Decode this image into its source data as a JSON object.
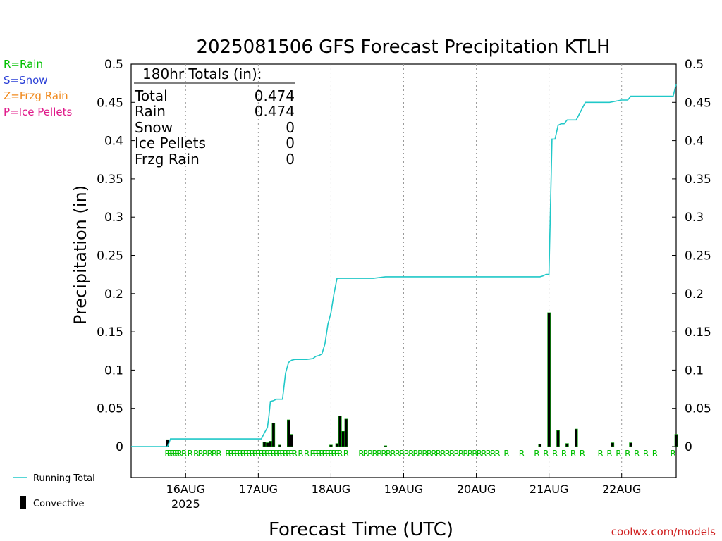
{
  "chart_data": {
    "type": "bar",
    "title": "2025081506 GFS Forecast Precipitation KTLH",
    "xlabel": "Forecast Time (UTC)",
    "ylabel": "Precipitation (in)",
    "ylim": [
      -0.04,
      0.5
    ],
    "yticks": [
      0,
      0.05,
      0.1,
      0.15,
      0.2,
      0.25,
      0.3,
      0.35,
      0.4,
      0.45,
      0.5
    ],
    "ytick_labels": [
      "0",
      "0.05",
      "0.1",
      "0.15",
      "0.2",
      "0.25",
      "0.3",
      "0.35",
      "0.4",
      "0.45",
      "0.5"
    ],
    "x_unit": "hours since 2025-08-15 06Z",
    "xlim": [
      0,
      180
    ],
    "grid": "vertical dotted at day boundaries",
    "xticks": [
      {
        "label": "16AUG",
        "sublabel": "2025",
        "hour": 18
      },
      {
        "label": "17AUG",
        "hour": 42
      },
      {
        "label": "18AUG",
        "hour": 66
      },
      {
        "label": "19AUG",
        "hour": 90
      },
      {
        "label": "20AUG",
        "hour": 114
      },
      {
        "label": "21AUG",
        "hour": 138
      },
      {
        "label": "22AUG",
        "hour": 162
      }
    ],
    "totals": {
      "heading": "180hr Totals (in):",
      "rows": [
        {
          "label": "Total",
          "value": "0.474"
        },
        {
          "label": "Rain",
          "value": "0.474"
        },
        {
          "label": "Snow",
          "value": "0"
        },
        {
          "label": "Ice Pellets",
          "value": "0"
        },
        {
          "label": "Frzg Rain",
          "value": "0"
        }
      ]
    },
    "type_legend": [
      {
        "text": "R=Rain",
        "color": "#00c000"
      },
      {
        "text": "S=Snow",
        "color": "#2a3fd6"
      },
      {
        "text": "Z=Frzg Rain",
        "color": "#f08a1e"
      },
      {
        "text": "P=Ice Pellets",
        "color": "#e01a8a"
      }
    ],
    "series": [
      {
        "name": "Running Total",
        "kind": "line",
        "color": "#20c8c8",
        "x": [
          0,
          12,
          12.5,
          13,
          43,
          44,
          45,
          45.5,
          46,
          47,
          48,
          50,
          51,
          52,
          53,
          54,
          58,
          60,
          61,
          62,
          63,
          64,
          65,
          66,
          67,
          68,
          69,
          80,
          84,
          130,
          134,
          135,
          136,
          137,
          138,
          139,
          140,
          141,
          142,
          143,
          144,
          147,
          150,
          153,
          154,
          158,
          162,
          163,
          164,
          165,
          170,
          178,
          179,
          180
        ],
        "y": [
          0,
          0,
          0.005,
          0.01,
          0.01,
          0.018,
          0.025,
          0.04,
          0.059,
          0.06,
          0.062,
          0.062,
          0.096,
          0.11,
          0.113,
          0.114,
          0.114,
          0.115,
          0.118,
          0.119,
          0.121,
          0.134,
          0.16,
          0.175,
          0.2,
          0.22,
          0.22,
          0.22,
          0.222,
          0.222,
          0.222,
          0.222,
          0.223,
          0.225,
          0.225,
          0.402,
          0.402,
          0.42,
          0.422,
          0.422,
          0.427,
          0.427,
          0.45,
          0.45,
          0.45,
          0.45,
          0.453,
          0.453,
          0.453,
          0.458,
          0.458,
          0.458,
          0.458,
          0.474
        ]
      },
      {
        "name": "Convective",
        "kind": "bar",
        "color": "#000000",
        "x": [
          12,
          44,
          45,
          46,
          47,
          49,
          52,
          53,
          66,
          68,
          69,
          70,
          71,
          84,
          135,
          138,
          141,
          144,
          147,
          159,
          165,
          180
        ],
        "y": [
          0.009,
          0.006,
          0.005,
          0.007,
          0.031,
          0.002,
          0.035,
          0.016,
          0.002,
          0.004,
          0.04,
          0.02,
          0.036,
          0.001,
          0.003,
          0.175,
          0.021,
          0.004,
          0.023,
          0.005,
          0.005,
          0.016
        ]
      }
    ],
    "type_markers": {
      "symbol": "R",
      "color": "#00c000",
      "hours": [
        12,
        12.8,
        13.6,
        14.4,
        15.2,
        16,
        17.5,
        19.5,
        21.5,
        23,
        24.5,
        26,
        27.5,
        29,
        32,
        33,
        34,
        35,
        36,
        37,
        38,
        39,
        40,
        41,
        42,
        43,
        44,
        45,
        46,
        47,
        48,
        49,
        50,
        51,
        52,
        53,
        54,
        56,
        58,
        60,
        61,
        62,
        63,
        64,
        65,
        66,
        67,
        68,
        69,
        71,
        76,
        77.5,
        79,
        80.5,
        82,
        83.5,
        85,
        86.5,
        88,
        89.5,
        91,
        92.5,
        94,
        95.5,
        97,
        98.5,
        100,
        101.5,
        103,
        104.5,
        106,
        107.5,
        109,
        110.5,
        112,
        113.5,
        115,
        116.5,
        118,
        119.5,
        121,
        124,
        129,
        134,
        137,
        140,
        143,
        146,
        149,
        155,
        158,
        161,
        164,
        167,
        170,
        173,
        179
      ]
    },
    "legend": [
      {
        "label": "Running Total",
        "kind": "line",
        "color": "#20c8c8"
      },
      {
        "label": "Convective",
        "kind": "bar",
        "color": "#000000"
      }
    ],
    "legend_placement": "bottom-left",
    "credit": "coolwx.com/models"
  }
}
